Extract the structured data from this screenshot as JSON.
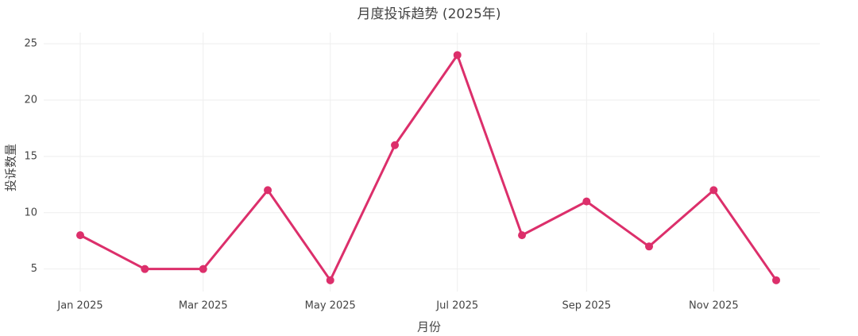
{
  "chart_data": {
    "type": "line",
    "title": "月度投诉趋势 (2025年)",
    "x_label": "月份",
    "y_label": "投诉数量",
    "x": [
      "2025-01",
      "2025-02",
      "2025-03",
      "2025-04",
      "2025-05",
      "2025-06",
      "2025-07",
      "2025-08",
      "2025-09",
      "2025-10",
      "2025-11",
      "2025-12"
    ],
    "series": [
      {
        "name": "投诉数量",
        "color": "#dc2f6b",
        "values": [
          8,
          5,
          5,
          12,
          4,
          16,
          24,
          8,
          11,
          7,
          12,
          4
        ]
      }
    ],
    "xticks": [
      {
        "value": "2025-01",
        "label": "Jan 2025"
      },
      {
        "value": "2025-03",
        "label": "Mar 2025"
      },
      {
        "value": "2025-05",
        "label": "May 2025"
      },
      {
        "value": "2025-07",
        "label": "Jul 2025"
      },
      {
        "value": "2025-09",
        "label": "Sep 2025"
      },
      {
        "value": "2025-11",
        "label": "Nov 2025"
      }
    ],
    "ylim": [
      3,
      26
    ],
    "yticks": [
      5,
      10,
      15,
      20,
      25
    ],
    "grid": true
  }
}
